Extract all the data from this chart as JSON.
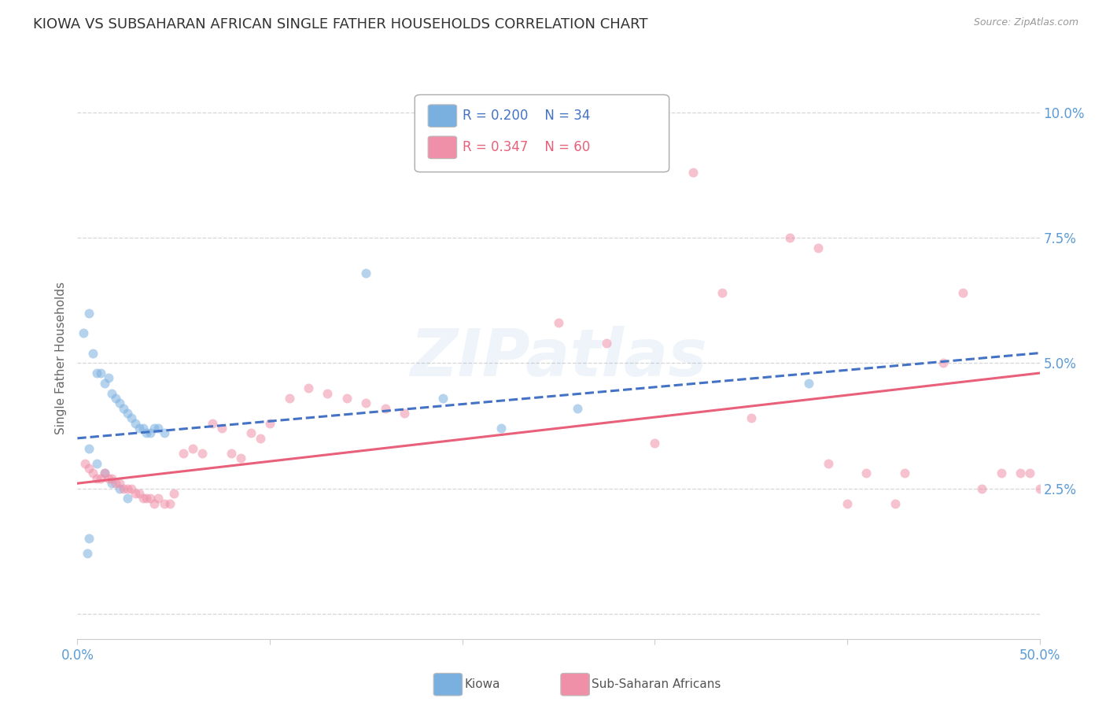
{
  "title": "KIOWA VS SUBSAHARAN AFRICAN SINGLE FATHER HOUSEHOLDS CORRELATION CHART",
  "source": "Source: ZipAtlas.com",
  "ylabel": "Single Father Households",
  "xlim": [
    0.0,
    0.5
  ],
  "ylim": [
    -0.005,
    0.107
  ],
  "legend_entries": [
    {
      "label": "Kiowa",
      "color": "#adc8e8",
      "R": "0.200",
      "N": "34"
    },
    {
      "label": "Sub-Saharan Africans",
      "color": "#f5aab8",
      "R": "0.347",
      "N": "60"
    }
  ],
  "kiowa_scatter": [
    [
      0.003,
      0.056
    ],
    [
      0.006,
      0.06
    ],
    [
      0.008,
      0.052
    ],
    [
      0.01,
      0.048
    ],
    [
      0.012,
      0.048
    ],
    [
      0.014,
      0.046
    ],
    [
      0.016,
      0.047
    ],
    [
      0.018,
      0.044
    ],
    [
      0.02,
      0.043
    ],
    [
      0.022,
      0.042
    ],
    [
      0.024,
      0.041
    ],
    [
      0.026,
      0.04
    ],
    [
      0.028,
      0.039
    ],
    [
      0.03,
      0.038
    ],
    [
      0.032,
      0.037
    ],
    [
      0.034,
      0.037
    ],
    [
      0.036,
      0.036
    ],
    [
      0.038,
      0.036
    ],
    [
      0.04,
      0.037
    ],
    [
      0.042,
      0.037
    ],
    [
      0.045,
      0.036
    ],
    [
      0.006,
      0.033
    ],
    [
      0.01,
      0.03
    ],
    [
      0.014,
      0.028
    ],
    [
      0.018,
      0.026
    ],
    [
      0.022,
      0.025
    ],
    [
      0.026,
      0.023
    ],
    [
      0.15,
      0.068
    ],
    [
      0.19,
      0.043
    ],
    [
      0.22,
      0.037
    ],
    [
      0.26,
      0.041
    ],
    [
      0.38,
      0.046
    ],
    [
      0.006,
      0.015
    ],
    [
      0.005,
      0.012
    ]
  ],
  "subsaharan_scatter": [
    [
      0.004,
      0.03
    ],
    [
      0.006,
      0.029
    ],
    [
      0.008,
      0.028
    ],
    [
      0.01,
      0.027
    ],
    [
      0.012,
      0.027
    ],
    [
      0.014,
      0.028
    ],
    [
      0.016,
      0.027
    ],
    [
      0.018,
      0.027
    ],
    [
      0.02,
      0.026
    ],
    [
      0.022,
      0.026
    ],
    [
      0.024,
      0.025
    ],
    [
      0.026,
      0.025
    ],
    [
      0.028,
      0.025
    ],
    [
      0.03,
      0.024
    ],
    [
      0.032,
      0.024
    ],
    [
      0.034,
      0.023
    ],
    [
      0.036,
      0.023
    ],
    [
      0.038,
      0.023
    ],
    [
      0.04,
      0.022
    ],
    [
      0.042,
      0.023
    ],
    [
      0.045,
      0.022
    ],
    [
      0.048,
      0.022
    ],
    [
      0.05,
      0.024
    ],
    [
      0.055,
      0.032
    ],
    [
      0.06,
      0.033
    ],
    [
      0.065,
      0.032
    ],
    [
      0.07,
      0.038
    ],
    [
      0.075,
      0.037
    ],
    [
      0.08,
      0.032
    ],
    [
      0.085,
      0.031
    ],
    [
      0.09,
      0.036
    ],
    [
      0.095,
      0.035
    ],
    [
      0.1,
      0.038
    ],
    [
      0.11,
      0.043
    ],
    [
      0.12,
      0.045
    ],
    [
      0.13,
      0.044
    ],
    [
      0.14,
      0.043
    ],
    [
      0.15,
      0.042
    ],
    [
      0.16,
      0.041
    ],
    [
      0.17,
      0.04
    ],
    [
      0.25,
      0.058
    ],
    [
      0.275,
      0.054
    ],
    [
      0.3,
      0.034
    ],
    [
      0.32,
      0.088
    ],
    [
      0.335,
      0.064
    ],
    [
      0.35,
      0.039
    ],
    [
      0.37,
      0.075
    ],
    [
      0.385,
      0.073
    ],
    [
      0.39,
      0.03
    ],
    [
      0.4,
      0.022
    ],
    [
      0.41,
      0.028
    ],
    [
      0.425,
      0.022
    ],
    [
      0.43,
      0.028
    ],
    [
      0.45,
      0.05
    ],
    [
      0.46,
      0.064
    ],
    [
      0.47,
      0.025
    ],
    [
      0.48,
      0.028
    ],
    [
      0.49,
      0.028
    ],
    [
      0.495,
      0.028
    ],
    [
      0.5,
      0.025
    ]
  ],
  "kiowa_line_x0": 0.0,
  "kiowa_line_y0": 0.035,
  "kiowa_line_x1": 0.5,
  "kiowa_line_y1": 0.052,
  "kiowa_line_color": "#4472c4",
  "kiowa_line_style": "--",
  "subsaharan_line_x0": 0.0,
  "subsaharan_line_y0": 0.026,
  "subsaharan_line_x1": 0.5,
  "subsaharan_line_y1": 0.048,
  "subsaharan_line_color": "#e8607a",
  "subsaharan_line_style": "-",
  "scatter_alpha": 0.55,
  "scatter_size": 75,
  "kiowa_scatter_color": "#7ab0e0",
  "subsaharan_scatter_color": "#f090a8",
  "background_color": "#ffffff",
  "grid_color": "#cccccc",
  "title_fontsize": 13,
  "tick_label_color": "#5b9bd5",
  "watermark_color": "#5b9bd5",
  "watermark_alpha": 0.1
}
